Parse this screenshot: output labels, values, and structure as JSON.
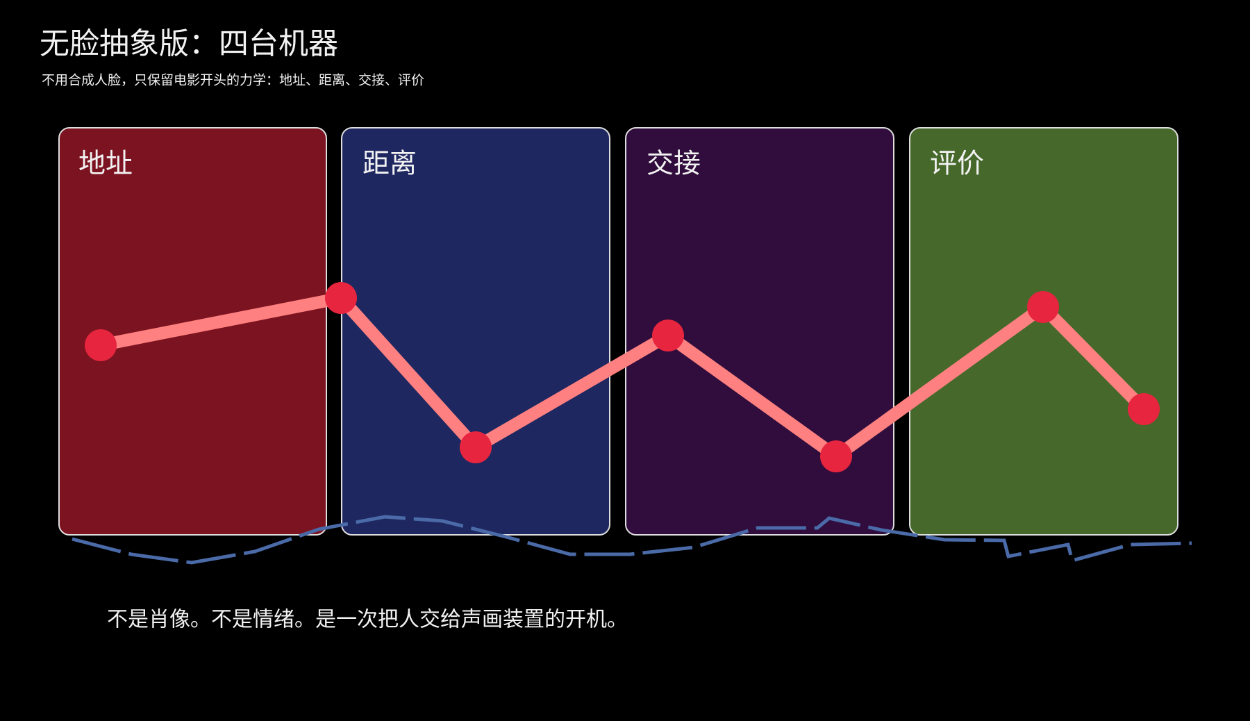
{
  "header": {
    "title": "无脸抽象版：四台机器",
    "subtitle": "不用合成人脸，只保留电影开头的力学：地址、距离、交接、评价"
  },
  "panels": [
    {
      "label": "地址"
    },
    {
      "label": "距离"
    },
    {
      "label": "交接"
    },
    {
      "label": "评价"
    }
  ],
  "caption": "不是肖像。不是情绪。是一次把人交给声画装置的开机。"
}
